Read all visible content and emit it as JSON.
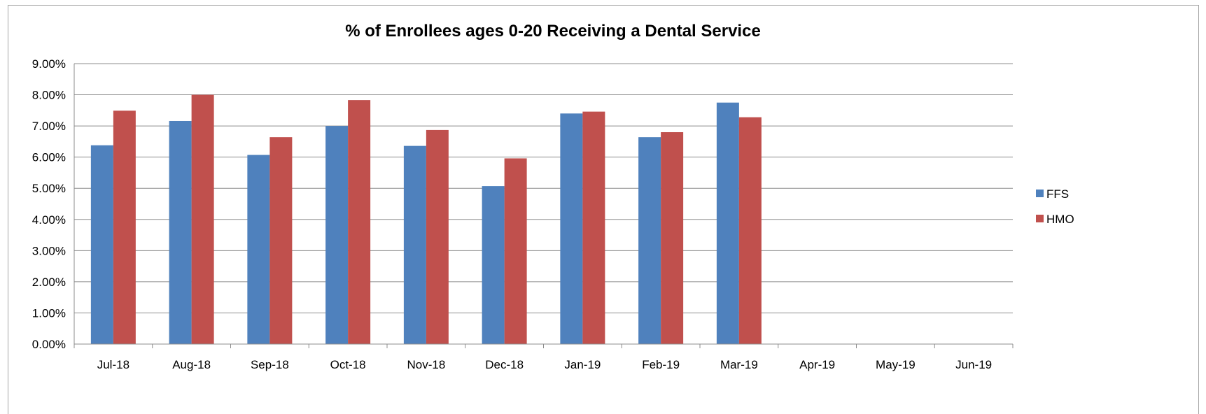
{
  "chart_data": {
    "type": "bar",
    "title": "% of Enrollees ages 0-20 Receiving a Dental Service",
    "xlabel": "",
    "ylabel": "",
    "categories": [
      "Jul-18",
      "Aug-18",
      "Sep-18",
      "Oct-18",
      "Nov-18",
      "Dec-18",
      "Jan-19",
      "Feb-19",
      "Mar-19",
      "Apr-19",
      "May-19",
      "Jun-19"
    ],
    "series": [
      {
        "name": "FFS",
        "color": "#4f81bd",
        "values": [
          6.38,
          7.16,
          6.07,
          7.0,
          6.36,
          5.07,
          7.4,
          6.64,
          7.75,
          null,
          null,
          null
        ]
      },
      {
        "name": "HMO",
        "color": "#c0504d",
        "values": [
          7.49,
          8.0,
          6.64,
          7.83,
          6.87,
          5.96,
          7.46,
          6.8,
          7.28,
          null,
          null,
          null
        ]
      }
    ],
    "ylim": [
      0,
      9
    ],
    "yticks": [
      0,
      1,
      2,
      3,
      4,
      5,
      6,
      7,
      8,
      9
    ],
    "ytick_labels": [
      "0.00%",
      "1.00%",
      "2.00%",
      "3.00%",
      "4.00%",
      "5.00%",
      "6.00%",
      "7.00%",
      "8.00%",
      "9.00%"
    ],
    "grid": true,
    "legend_position": "right"
  }
}
